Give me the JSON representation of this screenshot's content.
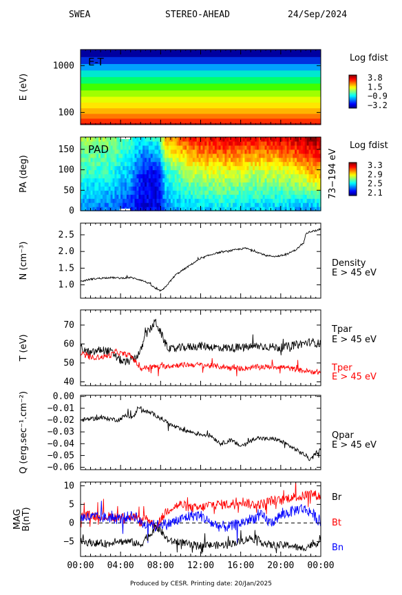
{
  "header": {
    "instrument": "SWEA",
    "spacecraft": "STEREO-AHEAD",
    "date": "24/Sep/2024"
  },
  "footer": {
    "credit": "Produced by CESR.   Printing date: 20/Jan/2025"
  },
  "colors": {
    "black": "#000000",
    "red": "#ff0000",
    "blue": "#0000ff"
  },
  "chart_data": [
    {
      "id": "et",
      "type": "heatmap",
      "inset_label": "E-T",
      "ylabel": "E (eV)",
      "yscale": "log",
      "ylim": [
        55,
        2200
      ],
      "yticks": [
        {
          "v": 100,
          "label": "100"
        },
        {
          "v": 1000,
          "label": "1000"
        }
      ],
      "colorbar": {
        "title": "Log fdist",
        "ticks": [
          "3.8",
          "1.5",
          "−0.9",
          "−3.2"
        ]
      },
      "bands": [
        {
          "e": 60,
          "c": "#b00000"
        },
        {
          "e": 75,
          "c": "#ff3000"
        },
        {
          "e": 95,
          "c": "#ff7800"
        },
        {
          "e": 125,
          "c": "#ffb400"
        },
        {
          "e": 165,
          "c": "#ffe600"
        },
        {
          "e": 220,
          "c": "#e6ff00"
        },
        {
          "e": 300,
          "c": "#a0ff00"
        },
        {
          "e": 420,
          "c": "#40ff00"
        },
        {
          "e": 580,
          "c": "#00ff70"
        },
        {
          "e": 800,
          "c": "#00e8d0"
        },
        {
          "e": 1100,
          "c": "#00a0ff"
        },
        {
          "e": 1550,
          "c": "#0030e0"
        },
        {
          "e": 2200,
          "c": "#0000a0"
        }
      ]
    },
    {
      "id": "pad",
      "type": "heatmap",
      "inset_label": "PAD",
      "ylabel": "PA (deg)",
      "right_label": "73−194 eV",
      "ylim": [
        0,
        180
      ],
      "yticks": [
        {
          "v": 0,
          "label": "0"
        },
        {
          "v": 50,
          "label": "50"
        },
        {
          "v": 100,
          "label": "100"
        },
        {
          "v": 150,
          "label": "150"
        }
      ],
      "colorbar": {
        "title": "Log fdist",
        "ticks": [
          "3.3",
          "2.9",
          "2.5",
          "2.1"
        ]
      },
      "data_gaps": [
        {
          "t0": 3.9,
          "t1": 5.0,
          "pa0": 175,
          "pa1": 180
        },
        {
          "t0": 3.9,
          "t1": 5.0,
          "pa0": 0,
          "pa1": 5
        }
      ],
      "keyframes": [
        {
          "t": 0,
          "high": 0.55,
          "mid": 0.42,
          "low": 0.25
        },
        {
          "t": 3,
          "high": 0.52,
          "mid": 0.4,
          "low": 0.22
        },
        {
          "t": 5,
          "high": 0.45,
          "mid": 0.3,
          "low": 0.15
        },
        {
          "t": 6.3,
          "high": 0.35,
          "mid": 0.12,
          "low": 0.1
        },
        {
          "t": 7.8,
          "high": 0.45,
          "mid": 0.1,
          "low": 0.12
        },
        {
          "t": 8.5,
          "high": 0.7,
          "mid": 0.4,
          "low": 0.25
        },
        {
          "t": 11,
          "high": 0.85,
          "mid": 0.55,
          "low": 0.3
        },
        {
          "t": 14,
          "high": 0.92,
          "mid": 0.58,
          "low": 0.35
        },
        {
          "t": 18,
          "high": 0.88,
          "mid": 0.55,
          "low": 0.32
        },
        {
          "t": 21,
          "high": 0.92,
          "mid": 0.58,
          "low": 0.3
        },
        {
          "t": 23,
          "high": 0.98,
          "mid": 0.68,
          "low": 0.25
        },
        {
          "t": 24,
          "high": 0.98,
          "mid": 0.7,
          "low": 0.3
        }
      ]
    },
    {
      "id": "density",
      "type": "line",
      "ylabel": "N (cm⁻³)",
      "ylim": [
        0.6,
        2.85
      ],
      "yticks": [
        {
          "v": 1.0,
          "label": "1.0"
        },
        {
          "v": 1.5,
          "label": "1.5"
        },
        {
          "v": 2.0,
          "label": "2.0"
        },
        {
          "v": 2.5,
          "label": "2.5"
        }
      ],
      "side_labels": [
        {
          "text": "Density",
          "color": "black"
        },
        {
          "text": "E > 45 eV",
          "color": "black"
        }
      ],
      "series": [
        {
          "color": "black",
          "noise": 0.025,
          "x": [
            0,
            1,
            2,
            3,
            4,
            5,
            6,
            6.8,
            7.3,
            7.8,
            8.2,
            8.8,
            9.5,
            10.5,
            11.5,
            12.5,
            13.5,
            14.5,
            15.5,
            16.5,
            17.5,
            18.5,
            19.5,
            20.5,
            21.5,
            22.3,
            22.5,
            23,
            23.5,
            24
          ],
          "y": [
            1.1,
            1.17,
            1.2,
            1.22,
            1.2,
            1.22,
            1.15,
            1.05,
            0.93,
            0.83,
            0.84,
            1.05,
            1.3,
            1.5,
            1.7,
            1.85,
            1.95,
            2.0,
            2.05,
            2.1,
            2.0,
            1.88,
            1.85,
            1.9,
            2.05,
            2.25,
            2.55,
            2.6,
            2.62,
            2.68
          ]
        }
      ]
    },
    {
      "id": "temperature",
      "type": "line",
      "ylabel": "T (eV)",
      "ylim": [
        38,
        78
      ],
      "yticks": [
        {
          "v": 40,
          "label": "40"
        },
        {
          "v": 50,
          "label": "50"
        },
        {
          "v": 60,
          "label": "60"
        },
        {
          "v": 70,
          "label": "70"
        }
      ],
      "side_labels": [
        {
          "text": "Tpar",
          "color": "black"
        },
        {
          "text": "E > 45 eV",
          "color": "black"
        },
        {
          "text": "Tper",
          "color": "red"
        },
        {
          "text": "E > 45 eV",
          "color": "red"
        }
      ],
      "series": [
        {
          "name": "Tpar",
          "color": "black",
          "noise": 2.2,
          "x": [
            0,
            1,
            2,
            3,
            3.8,
            4.5,
            5.5,
            6,
            6.5,
            7,
            7.5,
            8,
            8.5,
            9,
            10,
            12,
            14,
            16,
            18,
            20,
            22,
            23,
            24
          ],
          "y": [
            58,
            55,
            57,
            56,
            52,
            50,
            53,
            56,
            65,
            68,
            72,
            66,
            60,
            57,
            58,
            59,
            58,
            58,
            59,
            58,
            60,
            61,
            60
          ]
        },
        {
          "name": "Tper",
          "color": "red",
          "noise": 1.4,
          "x": [
            0,
            1,
            2,
            3,
            3.5,
            4,
            5,
            6,
            7,
            8,
            10,
            12,
            14,
            16,
            18,
            20,
            22,
            24
          ],
          "y": [
            55,
            53,
            53,
            54,
            56,
            55,
            54,
            47,
            48,
            48,
            49,
            49,
            48,
            47,
            48,
            48,
            46,
            45
          ]
        }
      ]
    },
    {
      "id": "heatflux",
      "type": "line",
      "ylabel": "Q (erg.sec⁻¹.cm⁻²)",
      "ylim": [
        -0.062,
        0.001
      ],
      "yticks": [
        {
          "v": 0.0,
          "label": "0.00"
        },
        {
          "v": -0.01,
          "label": "−0.01"
        },
        {
          "v": -0.02,
          "label": "−0.02"
        },
        {
          "v": -0.03,
          "label": "−0.03"
        },
        {
          "v": -0.04,
          "label": "−0.04"
        },
        {
          "v": -0.05,
          "label": "−0.05"
        },
        {
          "v": -0.06,
          "label": "−0.06"
        }
      ],
      "side_labels": [
        {
          "text": "Qpar",
          "color": "black"
        },
        {
          "text": "E > 45 eV",
          "color": "black"
        }
      ],
      "series": [
        {
          "color": "black",
          "noise": 0.0018,
          "x": [
            0,
            1,
            2,
            3,
            3.8,
            4.5,
            5.3,
            5.8,
            6.3,
            7,
            8,
            9,
            10,
            11,
            12,
            13,
            14,
            15,
            16,
            16.5,
            17.5,
            18.5,
            19.5,
            20.5,
            21.5,
            22.5,
            23,
            23.5,
            24
          ],
          "y": [
            -0.02,
            -0.019,
            -0.018,
            -0.019,
            -0.02,
            -0.016,
            -0.018,
            -0.008,
            -0.012,
            -0.014,
            -0.018,
            -0.024,
            -0.028,
            -0.03,
            -0.032,
            -0.033,
            -0.04,
            -0.037,
            -0.042,
            -0.04,
            -0.035,
            -0.036,
            -0.036,
            -0.04,
            -0.045,
            -0.05,
            -0.054,
            -0.048,
            -0.045
          ]
        }
      ]
    },
    {
      "id": "mag",
      "type": "line",
      "ylabel": "B(nT)",
      "ylabel2": "MAG",
      "ylim": [
        -9,
        11
      ],
      "yticks": [
        {
          "v": -5,
          "label": "−5"
        },
        {
          "v": 0,
          "label": "0"
        },
        {
          "v": 5,
          "label": "5"
        },
        {
          "v": 10,
          "label": "10"
        }
      ],
      "zero_line": true,
      "side_labels": [
        {
          "text": "Br",
          "color": "black"
        },
        {
          "text": "Bt",
          "color": "red"
        },
        {
          "text": "Bn",
          "color": "blue"
        }
      ],
      "series": [
        {
          "name": "Bt",
          "color": "red",
          "noise": 1.3,
          "x": [
            0,
            1,
            2,
            3,
            3.8,
            4.5,
            5.5,
            6,
            6.5,
            7,
            7.5,
            8,
            8.5,
            9,
            10,
            11,
            12,
            13,
            14,
            15,
            16,
            17,
            18,
            19,
            20,
            21,
            22,
            23,
            24
          ],
          "y": [
            2,
            2,
            1.8,
            1.7,
            1.5,
            1.8,
            1.5,
            0,
            1.5,
            0.5,
            -1,
            0.5,
            3,
            4,
            5,
            4,
            4,
            5,
            5,
            5,
            6,
            5,
            5,
            6,
            6,
            7,
            7,
            8,
            7
          ]
        },
        {
          "name": "Bn",
          "color": "blue",
          "noise": 1.5,
          "x": [
            0,
            1,
            2,
            3,
            3.8,
            4.5,
            5.5,
            6,
            6.5,
            7,
            7.5,
            8,
            8.5,
            9,
            10,
            11,
            12,
            13,
            14,
            15,
            16,
            17,
            18,
            19,
            20,
            21,
            22,
            23,
            24
          ],
          "y": [
            1.5,
            1.5,
            1.5,
            1.4,
            1,
            1.5,
            2,
            0,
            -0.5,
            0,
            -1,
            0,
            -0.5,
            0,
            1,
            2,
            2,
            0,
            -1,
            -1,
            0,
            1,
            2,
            0,
            2,
            3,
            4,
            3,
            0
          ]
        },
        {
          "name": "Br",
          "color": "black",
          "noise": 1.0,
          "x": [
            0,
            1,
            2,
            3,
            3.5,
            4,
            5,
            6,
            6.5,
            7,
            7.5,
            8,
            8.5,
            9,
            10,
            11,
            12,
            13,
            14,
            15,
            16,
            17,
            18,
            19,
            20,
            21,
            22,
            23,
            24
          ],
          "y": [
            -5,
            -5.3,
            -5.5,
            -5.6,
            -4.5,
            -5,
            -5,
            -6,
            -4,
            -3,
            -1,
            -2,
            -4,
            -5,
            -5,
            -6,
            -6,
            -6,
            -6,
            -5.5,
            -5,
            -4,
            -5,
            -6,
            -6,
            -6,
            -7,
            -6,
            -5
          ]
        }
      ]
    }
  ],
  "x_axis": {
    "range": [
      0,
      24
    ],
    "ticks": [
      {
        "v": 0,
        "label": "00:00"
      },
      {
        "v": 4,
        "label": "04:00"
      },
      {
        "v": 8,
        "label": "08:00"
      },
      {
        "v": 12,
        "label": "12:00"
      },
      {
        "v": 16,
        "label": "16:00"
      },
      {
        "v": 20,
        "label": "20:00"
      },
      {
        "v": 24,
        "label": "00:00"
      }
    ]
  }
}
